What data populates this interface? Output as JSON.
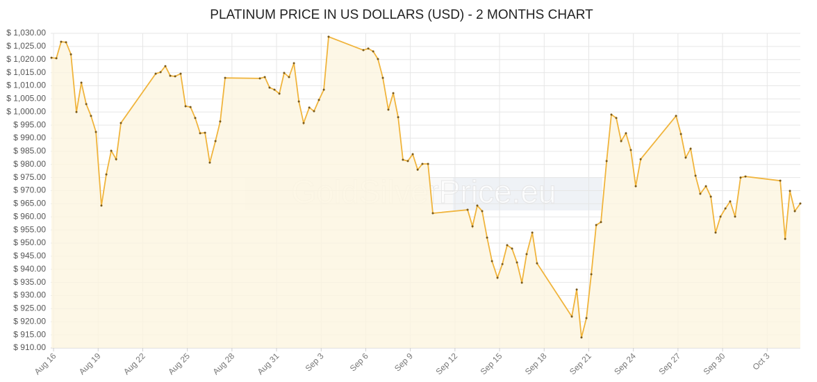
{
  "chart_data": {
    "type": "line",
    "title": "PLATINUM PRICE IN US DOLLARS (USD) - 2 MONTHS CHART",
    "watermark": "GoldSilverPrice.eu",
    "x": [
      -0.14,
      0.19,
      0.51,
      0.84,
      1.17,
      1.54,
      1.87,
      2.2,
      2.52,
      2.85,
      3.22,
      3.55,
      3.88,
      4.21,
      4.53,
      6.87,
      7.2,
      7.52,
      7.85,
      8.18,
      8.55,
      8.88,
      9.21,
      9.53,
      9.86,
      10.19,
      10.51,
      10.89,
      11.21,
      11.54,
      13.88,
      14.21,
      14.53,
      14.86,
      15.19,
      15.51,
      15.84,
      16.17,
      16.5,
      16.82,
      17.2,
      17.52,
      17.85,
      18.18,
      18.5,
      20.84,
      21.17,
      21.5,
      21.82,
      22.15,
      22.52,
      22.85,
      23.18,
      23.5,
      23.83,
      24.16,
      24.49,
      24.81,
      25.19,
      25.51,
      27.85,
      28.18,
      28.5,
      28.83,
      29.16,
      29.49,
      29.86,
      30.19,
      30.51,
      30.84,
      31.17,
      31.5,
      31.82,
      32.2,
      32.52,
      34.86,
      35.19,
      35.51,
      35.84,
      36.17,
      36.5,
      36.82,
      37.2,
      37.52,
      37.85,
      38.18,
      38.5,
      38.83,
      39.16,
      39.49,
      41.87,
      42.2,
      42.52,
      42.85,
      43.18,
      43.5,
      43.88,
      44.21,
      44.53,
      44.86,
      45.19,
      45.51,
      45.84,
      46.21,
      46.54,
      48.88,
      49.21,
      49.53,
      49.86,
      50.23
    ],
    "series": [
      {
        "name": "Platinum",
        "color": "#f0b43c",
        "values": [
          1020.7,
          1020.5,
          1026.8,
          1026.6,
          1022,
          1000,
          1011.2,
          1003,
          998.5,
          992.4,
          964.3,
          976.2,
          985.2,
          982,
          995.8,
          1014.6,
          1015.2,
          1017.5,
          1013.8,
          1013.6,
          1014.6,
          1002.2,
          1001.9,
          997.7,
          991.9,
          992.1,
          980.7,
          988.9,
          996.4,
          1013,
          1012.8,
          1013.3,
          1009.3,
          1008.5,
          1007,
          1014.9,
          1013.3,
          1018.6,
          1004,
          995.8,
          1001.7,
          1000.3,
          1004.6,
          1008.5,
          1028.7,
          1023.6,
          1024.2,
          1023.1,
          1020.2,
          1013,
          1000.9,
          1007.2,
          998,
          981.8,
          981.3,
          983.9,
          978,
          980.2,
          980.2,
          961.4,
          962.7,
          956.4,
          964.3,
          962.2,
          952.1,
          943.1,
          936.8,
          942,
          949.2,
          947.9,
          942.6,
          934.9,
          945.8,
          954,
          942.3,
          922,
          932.3,
          914,
          921.4,
          938.1,
          956.9,
          958,
          981.3,
          999,
          997.7,
          988.9,
          991.9,
          985.5,
          971.7,
          982,
          998.5,
          991.6,
          982.6,
          986,
          975.7,
          968.8,
          971.7,
          967.7,
          954,
          960.1,
          963.2,
          965.9,
          960.1,
          975,
          975.4,
          973.8,
          951.6,
          969.9,
          962.2,
          965.1
        ]
      }
    ],
    "xlim": [
      -0.19,
      50.23
    ],
    "xticks": [
      {
        "value": 0,
        "label": "Aug 16"
      },
      {
        "value": 3,
        "label": "Aug 19"
      },
      {
        "value": 6,
        "label": "Aug 22"
      },
      {
        "value": 9,
        "label": "Aug 25"
      },
      {
        "value": 12,
        "label": "Aug 28"
      },
      {
        "value": 15,
        "label": "Aug 31"
      },
      {
        "value": 18,
        "label": "Sep 3"
      },
      {
        "value": 21,
        "label": "Sep 6"
      },
      {
        "value": 24,
        "label": "Sep 9"
      },
      {
        "value": 27,
        "label": "Sep 12"
      },
      {
        "value": 30,
        "label": "Sep 15"
      },
      {
        "value": 33,
        "label": "Sep 18"
      },
      {
        "value": 36,
        "label": "Sep 21"
      },
      {
        "value": 39,
        "label": "Sep 24"
      },
      {
        "value": 42,
        "label": "Sep 27"
      },
      {
        "value": 45,
        "label": "Sep 30"
      },
      {
        "value": 48,
        "label": "Oct 3"
      }
    ],
    "ylim": [
      910,
      1030
    ],
    "yticks": [
      {
        "value": 910,
        "label": "$ 910.00"
      },
      {
        "value": 915,
        "label": "$ 915.00"
      },
      {
        "value": 920,
        "label": "$ 920.00"
      },
      {
        "value": 925,
        "label": "$ 925.00"
      },
      {
        "value": 930,
        "label": "$ 930.00"
      },
      {
        "value": 935,
        "label": "$ 935.00"
      },
      {
        "value": 940,
        "label": "$ 940.00"
      },
      {
        "value": 945,
        "label": "$ 945.00"
      },
      {
        "value": 950,
        "label": "$ 950.00"
      },
      {
        "value": 955,
        "label": "$ 955.00"
      },
      {
        "value": 960,
        "label": "$ 960.00"
      },
      {
        "value": 965,
        "label": "$ 965.00"
      },
      {
        "value": 970,
        "label": "$ 970.00"
      },
      {
        "value": 975,
        "label": "$ 975.00"
      },
      {
        "value": 980,
        "label": "$ 980.00"
      },
      {
        "value": 985,
        "label": "$ 985.00"
      },
      {
        "value": 990,
        "label": "$ 990.00"
      },
      {
        "value": 995,
        "label": "$ 995.00"
      },
      {
        "value": 1000,
        "label": "$ 1,000.00"
      },
      {
        "value": 1005,
        "label": "$ 1,005.00"
      },
      {
        "value": 1010,
        "label": "$ 1,010.00"
      },
      {
        "value": 1015,
        "label": "$ 1,015.00"
      },
      {
        "value": 1020,
        "label": "$ 1,020.00"
      },
      {
        "value": 1025,
        "label": "$ 1,025.00"
      },
      {
        "value": 1030,
        "label": "$ 1,030.00"
      }
    ],
    "grid": true
  }
}
